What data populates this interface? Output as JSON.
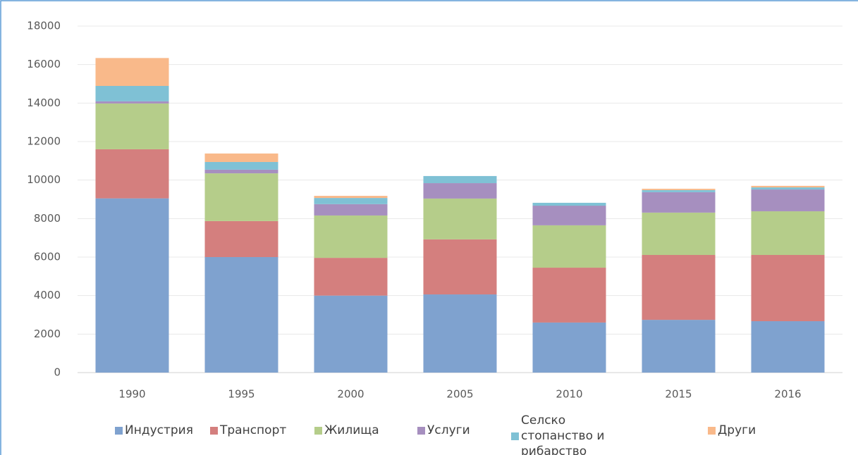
{
  "chart_data": {
    "type": "stacked_bar",
    "categories": [
      "1990",
      "1995",
      "2000",
      "2005",
      "2010",
      "2015",
      "2016"
    ],
    "series": [
      {
        "name": "Индустрия",
        "color": "#7fa2cf",
        "values": [
          9050,
          6000,
          4000,
          4060,
          2600,
          2740,
          2670
        ]
      },
      {
        "name": "Транспорт",
        "color": "#d47f7e",
        "values": [
          2550,
          1870,
          1960,
          2860,
          2850,
          3370,
          3440
        ]
      },
      {
        "name": "Жилища",
        "color": "#b5cd8a",
        "values": [
          2380,
          2480,
          2200,
          2120,
          2200,
          2200,
          2270
        ]
      },
      {
        "name": "Услуги",
        "color": "#a68fbf",
        "values": [
          110,
          190,
          590,
          800,
          1020,
          1060,
          1130
        ]
      },
      {
        "name": "Селско стопанство и рибарство",
        "color": "#7fc1d5",
        "values": [
          800,
          400,
          320,
          370,
          150,
          110,
          110
        ]
      },
      {
        "name": "Други",
        "color": "#f9b98a",
        "values": [
          1450,
          440,
          110,
          0,
          0,
          70,
          80
        ]
      }
    ],
    "ylim": [
      0,
      18000
    ],
    "yticks": [
      0,
      2000,
      4000,
      6000,
      8000,
      10000,
      12000,
      14000,
      16000,
      18000
    ],
    "grid": true
  }
}
